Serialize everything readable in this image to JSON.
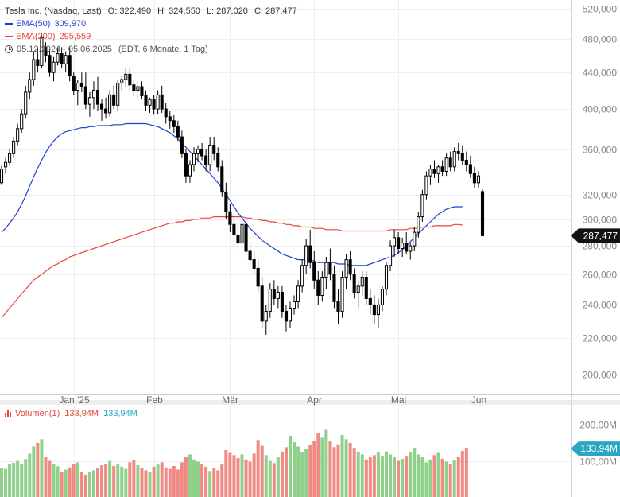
{
  "legend": {
    "title": "Tesla Inc. (Nasdaq, Last)",
    "open_label": "O: 322,490",
    "high_label": "H: 324,550",
    "low_label": "L: 287,020",
    "close_label": "C: 287,477",
    "ema50_label": "EMA(50)",
    "ema50_value": "309,970",
    "ema200_label": "EMA(200)",
    "ema200_value": "295,559",
    "range": "05.12.2024 - 05.06.2025",
    "range_note": "(EDT, 6 Monate, 1 Tag)",
    "ema50_color": "#1f3fd1",
    "ema200_color": "#e8463a"
  },
  "volume_legend": {
    "label": "Volumen(1)",
    "value_a": "133,94M",
    "value_b": "133,94M"
  },
  "chart_data": {
    "type": "candlestick",
    "title": "Tesla Inc. (Nasdaq, Last)",
    "price_axis": {
      "scale": "log",
      "ylim": [
        190,
        525
      ],
      "ticks": [
        520,
        480,
        440,
        400,
        360,
        320,
        300,
        280,
        260,
        240,
        220,
        200
      ],
      "tick_labels": [
        "520,000",
        "480,000",
        "440,000",
        "400,000",
        "360,000",
        "320,000",
        "300,000",
        "280,000",
        "260,000",
        "240,000",
        "220,000",
        "200,000"
      ],
      "last_price_label": "287,477",
      "last_price": 287.477
    },
    "x_axis": {
      "month_labels": [
        "Jan '25",
        "Feb",
        "Mär",
        "Apr",
        "Mai",
        "Jun"
      ],
      "month_positions": [
        18,
        38,
        57,
        78,
        99,
        119
      ]
    },
    "grid": true,
    "candles": [
      [
        330,
        345,
        328,
        342
      ],
      [
        344,
        352,
        338,
        348
      ],
      [
        348,
        360,
        345,
        356
      ],
      [
        356,
        372,
        352,
        368
      ],
      [
        368,
        385,
        364,
        380
      ],
      [
        380,
        400,
        376,
        395
      ],
      [
        395,
        425,
        390,
        418
      ],
      [
        418,
        440,
        410,
        432
      ],
      [
        432,
        465,
        425,
        455
      ],
      [
        455,
        470,
        440,
        448
      ],
      [
        448,
        488,
        445,
        482
      ],
      [
        470,
        476,
        452,
        460
      ],
      [
        460,
        468,
        435,
        440
      ],
      [
        440,
        458,
        430,
        452
      ],
      [
        452,
        470,
        448,
        462
      ],
      [
        462,
        470,
        445,
        450
      ],
      [
        450,
        465,
        440,
        460
      ],
      [
        460,
        470,
        430,
        436
      ],
      [
        436,
        440,
        415,
        420
      ],
      [
        420,
        432,
        404,
        428
      ],
      [
        428,
        440,
        418,
        424
      ],
      [
        424,
        440,
        400,
        405
      ],
      [
        405,
        418,
        392,
        412
      ],
      [
        412,
        430,
        400,
        420
      ],
      [
        420,
        435,
        398,
        405
      ],
      [
        405,
        410,
        388,
        400
      ],
      [
        400,
        412,
        390,
        396
      ],
      [
        396,
        420,
        392,
        415
      ],
      [
        415,
        425,
        400,
        404
      ],
      [
        404,
        432,
        398,
        428
      ],
      [
        428,
        436,
        420,
        432
      ],
      [
        432,
        445,
        424,
        438
      ],
      [
        438,
        445,
        420,
        426
      ],
      [
        426,
        432,
        414,
        420
      ],
      [
        420,
        430,
        410,
        424
      ],
      [
        424,
        430,
        410,
        414
      ],
      [
        414,
        420,
        398,
        404
      ],
      [
        404,
        412,
        396,
        410
      ],
      [
        410,
        415,
        395,
        400
      ],
      [
        400,
        420,
        395,
        415
      ],
      [
        415,
        425,
        396,
        400
      ],
      [
        400,
        406,
        385,
        392
      ],
      [
        392,
        398,
        380,
        388
      ],
      [
        388,
        394,
        376,
        382
      ],
      [
        382,
        388,
        368,
        372
      ],
      [
        372,
        378,
        352,
        356
      ],
      [
        356,
        360,
        330,
        336
      ],
      [
        336,
        350,
        330,
        346
      ],
      [
        346,
        362,
        340,
        356
      ],
      [
        356,
        364,
        348,
        360
      ],
      [
        360,
        366,
        350,
        354
      ],
      [
        354,
        360,
        340,
        346
      ],
      [
        346,
        372,
        340,
        364
      ],
      [
        364,
        372,
        350,
        356
      ],
      [
        356,
        362,
        340,
        344
      ],
      [
        344,
        350,
        318,
        322
      ],
      [
        322,
        330,
        300,
        306
      ],
      [
        306,
        312,
        290,
        296
      ],
      [
        296,
        304,
        282,
        288
      ],
      [
        288,
        296,
        276,
        282
      ],
      [
        282,
        300,
        276,
        296
      ],
      [
        296,
        302,
        270,
        276
      ],
      [
        276,
        282,
        266,
        270
      ],
      [
        270,
        276,
        260,
        264
      ],
      [
        264,
        270,
        248,
        252
      ],
      [
        252,
        258,
        226,
        230
      ],
      [
        230,
        240,
        222,
        236
      ],
      [
        236,
        254,
        232,
        250
      ],
      [
        250,
        256,
        240,
        244
      ],
      [
        244,
        252,
        238,
        248
      ],
      [
        248,
        252,
        232,
        236
      ],
      [
        236,
        240,
        224,
        230
      ],
      [
        230,
        242,
        226,
        238
      ],
      [
        238,
        246,
        234,
        242
      ],
      [
        242,
        256,
        238,
        252
      ],
      [
        252,
        270,
        248,
        266
      ],
      [
        266,
        285,
        260,
        280
      ],
      [
        280,
        292,
        264,
        268
      ],
      [
        268,
        276,
        250,
        256
      ],
      [
        256,
        262,
        240,
        246
      ],
      [
        246,
        262,
        242,
        258
      ],
      [
        258,
        272,
        250,
        268
      ],
      [
        268,
        278,
        256,
        260
      ],
      [
        260,
        266,
        238,
        242
      ],
      [
        242,
        250,
        228,
        236
      ],
      [
        236,
        262,
        232,
        258
      ],
      [
        258,
        274,
        250,
        270
      ],
      [
        270,
        276,
        256,
        260
      ],
      [
        260,
        264,
        244,
        248
      ],
      [
        248,
        256,
        238,
        252
      ],
      [
        252,
        262,
        246,
        258
      ],
      [
        258,
        262,
        240,
        244
      ],
      [
        244,
        250,
        234,
        240
      ],
      [
        240,
        246,
        228,
        234
      ],
      [
        234,
        244,
        226,
        240
      ],
      [
        240,
        252,
        236,
        250
      ],
      [
        250,
        268,
        246,
        266
      ],
      [
        266,
        284,
        262,
        280
      ],
      [
        280,
        292,
        272,
        286
      ],
      [
        286,
        290,
        274,
        278
      ],
      [
        278,
        286,
        272,
        282
      ],
      [
        282,
        290,
        274,
        276
      ],
      [
        276,
        282,
        270,
        280
      ],
      [
        280,
        294,
        276,
        290
      ],
      [
        290,
        306,
        286,
        302
      ],
      [
        302,
        324,
        298,
        320
      ],
      [
        320,
        340,
        316,
        336
      ],
      [
        336,
        346,
        328,
        342
      ],
      [
        342,
        350,
        334,
        338
      ],
      [
        338,
        346,
        330,
        344
      ],
      [
        344,
        350,
        336,
        340
      ],
      [
        340,
        356,
        336,
        352
      ],
      [
        352,
        358,
        340,
        344
      ],
      [
        344,
        362,
        340,
        358
      ],
      [
        358,
        366,
        350,
        356
      ],
      [
        356,
        364,
        346,
        350
      ],
      [
        350,
        358,
        340,
        346
      ],
      [
        346,
        354,
        334,
        338
      ],
      [
        338,
        344,
        326,
        330
      ],
      [
        330,
        340,
        326,
        336
      ],
      [
        322.49,
        324.55,
        287.02,
        287.477
      ]
    ],
    "ema50": [
      290,
      293,
      297,
      301,
      306,
      312,
      319,
      327,
      335,
      343,
      350,
      357,
      363,
      368,
      372,
      375,
      377,
      378,
      379,
      380,
      381,
      381,
      382,
      382,
      383,
      383,
      383,
      383,
      384,
      384,
      384,
      385,
      385,
      385,
      385,
      385,
      385,
      384,
      383,
      382,
      380,
      378,
      376,
      373,
      370,
      366,
      362,
      358,
      354,
      350,
      346,
      342,
      338,
      334,
      330,
      325,
      320,
      315,
      310,
      305,
      301,
      297,
      293,
      290,
      287,
      284,
      282,
      280,
      278,
      276,
      274,
      273,
      272,
      271,
      270,
      270,
      270,
      270,
      269,
      268,
      268,
      268,
      268,
      268,
      267,
      267,
      267,
      266,
      266,
      266,
      266,
      266,
      267,
      268,
      269,
      270,
      271,
      272,
      273,
      275,
      277,
      280,
      283,
      286,
      289,
      292,
      295,
      298,
      301,
      304,
      306,
      308,
      309,
      310,
      310,
      309.97
    ],
    "ema200": [
      232,
      235,
      238,
      241,
      244,
      247,
      250,
      253,
      256,
      258,
      260,
      262,
      264,
      266,
      267,
      269,
      270,
      272,
      273,
      274,
      275,
      276,
      277,
      278,
      279,
      280,
      281,
      282,
      283,
      284,
      285,
      286,
      287,
      288,
      289,
      290,
      291,
      292,
      293,
      294,
      295,
      296,
      297,
      297,
      298,
      298,
      299,
      299,
      300,
      300,
      301,
      301,
      301,
      302,
      302,
      302,
      302,
      302,
      302,
      302,
      302,
      301,
      301,
      300,
      300,
      299,
      299,
      298,
      298,
      297,
      297,
      296,
      296,
      295,
      295,
      294,
      294,
      294,
      293,
      293,
      293,
      292,
      292,
      292,
      292,
      291,
      291,
      291,
      291,
      291,
      291,
      291,
      291,
      291,
      291,
      291,
      291,
      292,
      292,
      292,
      292,
      292,
      293,
      293,
      293,
      294,
      294,
      294,
      295,
      295,
      295,
      295,
      295,
      296,
      296,
      295.559
    ],
    "volume_axis": {
      "ticks": [
        200,
        100
      ],
      "tick_labels": [
        "200,00M",
        "100,00M"
      ],
      "ylim": [
        0,
        240
      ],
      "last_volume_label": "133,94M",
      "last_volume": 133.94
    },
    "volume": [
      80,
      78,
      90,
      95,
      100,
      92,
      105,
      120,
      140,
      150,
      160,
      110,
      100,
      90,
      85,
      70,
      76,
      82,
      90,
      96,
      70,
      62,
      68,
      74,
      80,
      88,
      92,
      100,
      86,
      90,
      84,
      78,
      96,
      102,
      88,
      80,
      74,
      70,
      84,
      90,
      96,
      82,
      78,
      86,
      76,
      96,
      110,
      118,
      104,
      98,
      92,
      84,
      72,
      80,
      74,
      92,
      130,
      122,
      116,
      108,
      118,
      104,
      98,
      120,
      158,
      142,
      116,
      100,
      94,
      110,
      126,
      138,
      170,
      152,
      140,
      124,
      132,
      144,
      156,
      178,
      164,
      186,
      154,
      138,
      146,
      172,
      160,
      150,
      134,
      126,
      118,
      104,
      110,
      116,
      124,
      112,
      126,
      118,
      110,
      100,
      106,
      112,
      124,
      134,
      118,
      110,
      96,
      104,
      116,
      122,
      106,
      98,
      92,
      102,
      110,
      128,
      133.94
    ]
  }
}
